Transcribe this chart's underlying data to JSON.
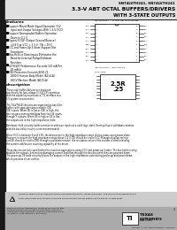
{
  "title_line1": "SN74LVTH241, SN74LVTH241",
  "title_line2": "3.3-V ABT OCTAL BUFFERS/DRIVERS",
  "title_line3": "WITH 3-STATE OUTPUTS",
  "pkg_label1": "SN74LVTH241 .... D, DW, DB, NS PACKAGES",
  "pkg_label2": "SN74LVTH241 ... D, DW, DB, NS PACKAGE",
  "pkg_top": "(TOP VIEW)",
  "features_title": "features",
  "description_title": "description",
  "bg_color": "#ffffff",
  "left_bar_color": "#1a1a1a",
  "left_bar_width": 6,
  "title_bg": "#e8e8e8",
  "warn_bg": "#cccccc",
  "bottom_bg": "#aaaaaa",
  "pin_labels_left": [
    "1OE",
    "1A1",
    "1A2",
    "1A3",
    "1A4",
    "GND",
    "2A4",
    "2A3",
    "2A2",
    "2A1"
  ],
  "pin_labels_right": [
    "VCC",
    "1Y1",
    "1Y2",
    "1Y3",
    "1Y4",
    "2OE",
    "2Y4",
    "2Y3",
    "2Y2",
    "2Y1"
  ],
  "feature_lines": [
    [
      "bullet",
      "Support Mixed-Mode Signal Operation (3-V"
    ],
    [
      "cont",
      "  Input and Output Voltages With 1.5-V V CC)"
    ],
    [
      "bullet",
      "Support Downgraded Buffers Operation"
    ],
    [
      "cont",
      "  Down to 0.1 V"
    ],
    [
      "bullet",
      "Typical V OLP (Output Ground Bounce)"
    ],
    [
      "cont",
      "  <0.8 V at V CC = 3.3 V, T A = 25°C"
    ],
    [
      "bullet",
      "I CC and Power-Up 3-State Support Not"
    ],
    [
      "cont",
      "  Transistors"
    ],
    [
      "bullet",
      "Bus-Hold on Data Inputs Eliminates the"
    ],
    [
      "cont",
      "  Need for External Pullup/Pulldown"
    ],
    [
      "cont",
      "  Resistors"
    ],
    [
      "bullet",
      "LVTH/LVT Performance Exceeds 100 mA Per"
    ],
    [
      "cont",
      "  20 mA lit"
    ],
    [
      "bullet",
      "ESD Protection Exceeds JESD-22"
    ],
    [
      "cont",
      "  2000-V Human Body Model (A114-A)"
    ],
    [
      "cont",
      "  200-V Machine Model (A115-A)"
    ]
  ],
  "desc_lines": [
    "These octal buffers/drivers are designed",
    "specifically for low-voltage (3.3-V/5-V) operation,",
    "with the capability to provide a TTL interface to a",
    "5-V system environment.",
    "",
    "The 74LVTH241 devices are organized as two 4-bit",
    "buffers with separate output-enable (OE)",
    "(OE) inputs. When OE is low or (OE) is high, the",
    "devices pass noninverted data from their A inputs",
    "through Y outputs. When OE is high or OE is low,",
    "the outputs are in the high-impedance state.",
    "",
    "Automatic hold circuitry holds common or unknown inputs at a valid logic state. Some pullup or pulldown resistors",
    "with the bus hold circuitry is not recommended.",
    "",
    "When V CC is between 0 and 1.5V, the devices are in the high-impedance state during power-up or power-down.",
    "However, to ensure the high-impedance state above 1.5 V, OE should be tied to V CC through a pullup resistor",
    "and OE should be tied to GND through a pulldown resistor; the resistance value of the resistor is determined by",
    "the current sink/source counting capability of the driver.",
    "",
    "These devices are fully specified for hot insertion applications using V CC and power-up 3-state. The bus hold circuitry",
    "disables the outputs, preventing damaging current backflow through the devices when they are powered down.",
    "The power-up OE state circuitry places the outputs in the high-impedance state during power-up and power-down,",
    "which prevents driver conflict."
  ],
  "warn_line1": "Please be aware that an important notice concerning availability, standard warranty, and use in critical applications of",
  "warn_line2": "Texas Instruments semiconductor products and disclaimers thereto appears at the end of this data sheet.",
  "legal_text": "PRODUCTION DATA information is current as of publication date.\nProducts conform to specifications per the terms of the Texas\nInstruments standard warranty. Production processing does not\nnecessarily include testing of all parameters.",
  "copyright": "Copyright © 2003, Texas Instruments Incorporated",
  "website": "www.ti.com",
  "page_num": "1"
}
